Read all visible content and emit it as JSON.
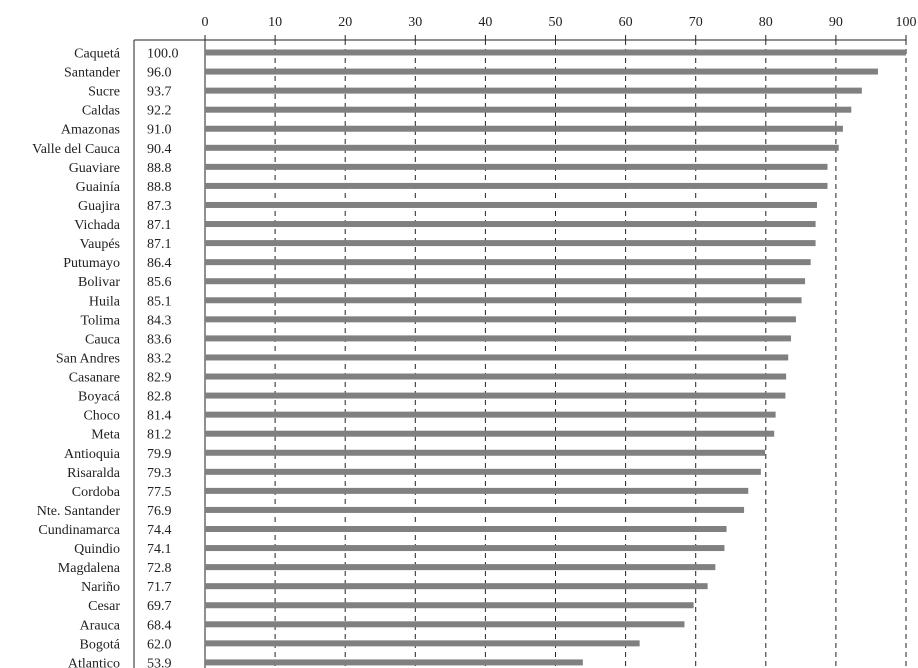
{
  "chart_data": {
    "type": "bar",
    "orientation": "horizontal",
    "title": "",
    "xlabel": "",
    "ylabel": "",
    "xlim": [
      0,
      100
    ],
    "xticks": [
      0,
      10,
      20,
      30,
      40,
      50,
      60,
      70,
      80,
      90,
      100
    ],
    "tick_position": "top",
    "grid": "vertical-dashed",
    "bar_color": "#808080",
    "categories": [
      "Caquetá",
      "Santander",
      "Sucre",
      "Caldas",
      "Amazonas",
      "Valle del Cauca",
      "Guaviare",
      "Guainía",
      "Guajira",
      "Vichada",
      "Vaupés",
      "Putumayo",
      "Bolivar",
      "Huila",
      "Tolima",
      "Cauca",
      "San Andres",
      "Casanare",
      "Boyacá",
      "Choco",
      "Meta",
      "Antioquia",
      "Risaralda",
      "Cordoba",
      "Nte. Santander",
      "Cundinamarca",
      "Quindio",
      "Magdalena",
      "Nariño",
      "Cesar",
      "Arauca",
      "Bogotá",
      "Atlantico"
    ],
    "values": [
      100.0,
      96.0,
      93.7,
      92.2,
      91.0,
      90.4,
      88.8,
      88.8,
      87.3,
      87.1,
      87.1,
      86.4,
      85.6,
      85.1,
      84.3,
      83.6,
      83.2,
      82.9,
      82.8,
      81.4,
      81.2,
      79.9,
      79.3,
      77.5,
      76.9,
      74.4,
      74.1,
      72.8,
      71.7,
      69.7,
      68.4,
      62.0,
      53.9
    ],
    "value_labels": [
      "100.0",
      "96.0",
      "93.7",
      "92.2",
      "91.0",
      "90.4",
      "88.8",
      "88.8",
      "87.3",
      "87.1",
      "87.1",
      "86.4",
      "85.6",
      "85.1",
      "84.3",
      "83.6",
      "83.2",
      "82.9",
      "82.8",
      "81.4",
      "81.2",
      "79.9",
      "79.3",
      "77.5",
      "76.9",
      "74.4",
      "74.1",
      "72.8",
      "71.7",
      "69.7",
      "68.4",
      "62.0",
      "53.9"
    ]
  }
}
